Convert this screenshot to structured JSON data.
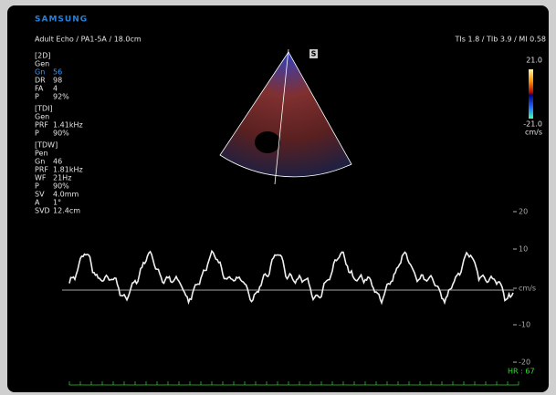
{
  "brand": "SAMSUNG",
  "header": {
    "left": "Adult Echo / PA1-5A / 18.0cm",
    "right": "TIs 1.8 / TIb 3.9 / MI 0.58"
  },
  "sector_marker": "S",
  "params": [
    {
      "title": "[2D]",
      "mode": "Gen",
      "rows": [
        [
          "Gn",
          "56"
        ],
        [
          "DR",
          "98"
        ],
        [
          "FA",
          "4"
        ],
        [
          "P",
          "92%"
        ]
      ]
    },
    {
      "title": "[TDI]",
      "mode": "Gen",
      "rows": [
        [
          "PRF",
          "1.41kHz"
        ],
        [
          "P",
          "90%"
        ]
      ]
    },
    {
      "title": "[TDW]",
      "mode": "Pen",
      "rows": [
        [
          "Gn",
          "46"
        ],
        [
          "PRF",
          "1.81kHz"
        ],
        [
          "WF",
          "21Hz"
        ],
        [
          "P",
          "90%"
        ],
        [
          "SV",
          "4.0mm"
        ],
        [
          "A",
          "1°"
        ],
        [
          "SVD",
          "12.4cm"
        ]
      ]
    }
  ],
  "color_bar": {
    "top": "21.0",
    "bottom": "-21.0",
    "unit": "cm/s"
  },
  "doppler_scale": [
    "20",
    "10",
    "cm/s",
    "-10",
    "-20"
  ],
  "heart_rate": "HR : 67"
}
